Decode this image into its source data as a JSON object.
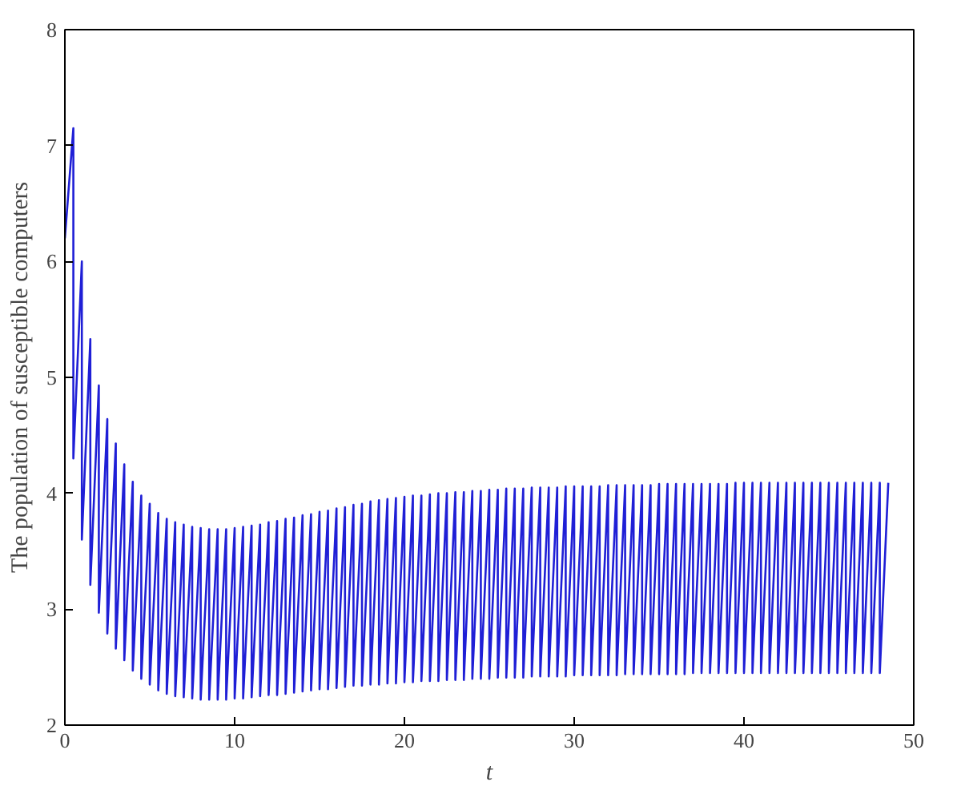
{
  "chart_data": {
    "type": "line",
    "xlabel": "t",
    "ylabel": "The population of susceptible computers",
    "xlim": [
      0,
      50
    ],
    "ylim": [
      2,
      8
    ],
    "xticks": [
      0,
      10,
      20,
      30,
      40,
      50
    ],
    "yticks": [
      2,
      3,
      4,
      5,
      6,
      7,
      8
    ],
    "series": [
      {
        "color": "#1f1fd6",
        "x": [
          0,
          0.5,
          0.5,
          1,
          1,
          1.5,
          1.5,
          2,
          2,
          2.5,
          2.5,
          3,
          3,
          3.5,
          3.5,
          4,
          4,
          4.5,
          4.5,
          5,
          5,
          5.5,
          5.5,
          6,
          6,
          6.5,
          6.5,
          7,
          7,
          7.5,
          7.5,
          8,
          8,
          8.5,
          8.5,
          9,
          9,
          9.5,
          9.5,
          10,
          10,
          10.5,
          10.5,
          11,
          11,
          11.5,
          11.5,
          12,
          12,
          12.5,
          12.5,
          13,
          13,
          13.5,
          13.5,
          14,
          14,
          14.5,
          14.5,
          15,
          15,
          15.5,
          15.5,
          16,
          16,
          16.5,
          16.5,
          17,
          17,
          17.5,
          17.5,
          18,
          18,
          18.5,
          18.5,
          19,
          19,
          19.5,
          19.5,
          20,
          20,
          20.5,
          20.5,
          21,
          21,
          21.5,
          21.5,
          22,
          22,
          22.5,
          22.5,
          23,
          23,
          23.5,
          23.5,
          24,
          24,
          24.5,
          24.5,
          25,
          25,
          25.5,
          25.5,
          26,
          26,
          26.5,
          26.5,
          27,
          27,
          27.5,
          27.5,
          28,
          28,
          28.5,
          28.5,
          29,
          29,
          29.5,
          29.5,
          30,
          30,
          30.5,
          30.5,
          31,
          31,
          31.5,
          31.5,
          32,
          32,
          32.5,
          32.5,
          33,
          33,
          33.5,
          33.5,
          34,
          34,
          34.5,
          34.5,
          35,
          35,
          35.5,
          35.5,
          36,
          36,
          36.5,
          36.5,
          37,
          37,
          37.5,
          37.5,
          38,
          38,
          38.5,
          38.5,
          39,
          39,
          39.5,
          39.5,
          40,
          40,
          40.5,
          40.5,
          41,
          41,
          41.5,
          41.5,
          42,
          42,
          42.5,
          42.5,
          43,
          43,
          43.5,
          43.5,
          44,
          44,
          44.5,
          44.5,
          45,
          45,
          45.5,
          45.5,
          46,
          46,
          46.5,
          46.5,
          47,
          47,
          47.5,
          47.5,
          48,
          48,
          48.5
        ],
        "values": [
          6.2,
          7.15,
          4.3,
          6.0,
          3.6,
          5.33,
          3.21,
          4.93,
          2.97,
          4.64,
          2.79,
          4.43,
          2.66,
          4.25,
          2.56,
          4.1,
          2.47,
          3.98,
          2.4,
          3.91,
          2.35,
          3.83,
          2.3,
          3.78,
          2.27,
          3.75,
          2.25,
          3.73,
          2.24,
          3.71,
          2.23,
          3.7,
          2.22,
          3.69,
          2.22,
          3.69,
          2.22,
          3.69,
          2.22,
          3.7,
          2.23,
          3.71,
          2.23,
          3.72,
          2.24,
          3.73,
          2.25,
          3.75,
          2.26,
          3.76,
          2.26,
          3.78,
          2.27,
          3.79,
          2.28,
          3.81,
          2.29,
          3.82,
          2.3,
          3.84,
          2.31,
          3.85,
          2.31,
          3.87,
          2.32,
          3.88,
          2.33,
          3.9,
          2.34,
          3.91,
          2.34,
          3.93,
          2.35,
          3.94,
          2.35,
          3.95,
          2.36,
          3.96,
          2.36,
          3.97,
          2.37,
          3.98,
          2.37,
          3.98,
          2.38,
          3.99,
          2.38,
          4.0,
          2.38,
          4.0,
          2.39,
          4.01,
          2.39,
          4.01,
          2.39,
          4.02,
          2.4,
          4.02,
          2.4,
          4.03,
          2.4,
          4.03,
          2.41,
          4.04,
          2.41,
          4.04,
          2.41,
          4.04,
          2.41,
          4.05,
          2.42,
          4.05,
          2.42,
          4.05,
          2.42,
          4.05,
          2.42,
          4.06,
          2.42,
          4.06,
          2.43,
          4.06,
          2.43,
          4.06,
          2.43,
          4.06,
          2.43,
          4.07,
          2.43,
          4.07,
          2.43,
          4.07,
          2.44,
          4.07,
          2.44,
          4.07,
          2.44,
          4.07,
          2.44,
          4.08,
          2.44,
          4.08,
          2.44,
          4.08,
          2.44,
          4.08,
          2.44,
          4.08,
          2.45,
          4.08,
          2.45,
          4.08,
          2.45,
          4.08,
          2.45,
          4.08,
          2.45,
          4.09,
          2.45,
          4.09,
          2.45,
          4.09,
          2.45,
          4.09,
          2.45,
          4.09,
          2.45,
          4.09,
          2.45,
          4.09,
          2.45,
          4.09,
          2.45,
          4.09,
          2.45,
          4.09,
          2.45,
          4.09,
          2.45,
          4.09,
          2.45,
          4.09,
          2.45,
          4.09,
          2.45,
          4.09,
          2.45,
          4.09,
          2.45,
          4.09,
          2.45,
          4.09,
          2.45,
          4.09
        ]
      }
    ]
  }
}
